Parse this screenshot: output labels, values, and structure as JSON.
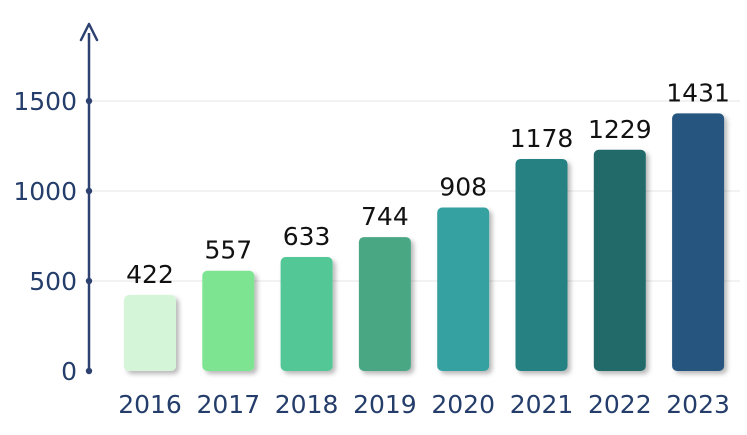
{
  "chart_data": {
    "type": "bar",
    "title": "",
    "xlabel": "",
    "ylabel": "",
    "categories": [
      "2016",
      "2017",
      "2018",
      "2019",
      "2020",
      "2021",
      "2022",
      "2023"
    ],
    "values": [
      422,
      557,
      633,
      744,
      908,
      1178,
      1229,
      1431
    ],
    "ylim": [
      0,
      1800
    ],
    "yticks": [
      0,
      500,
      1000,
      1500
    ],
    "grid": true,
    "legend": "none",
    "bar_colors": [
      "#d4f5d8",
      "#7de592",
      "#52c796",
      "#4aa883",
      "#36a1a1",
      "#288282",
      "#216b6a",
      "#25567f"
    ],
    "axis_color": "#2d4270"
  }
}
